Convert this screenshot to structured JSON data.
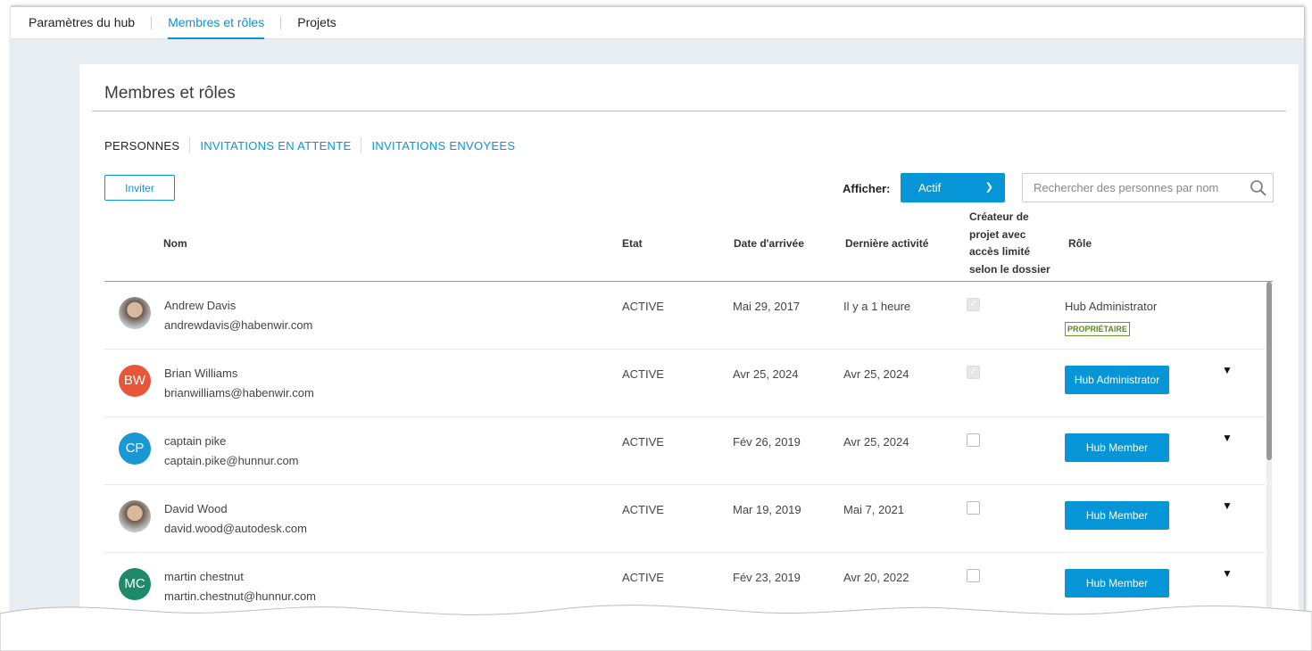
{
  "top_nav": {
    "tabs": [
      {
        "label": "Paramètres du hub"
      },
      {
        "label": "Membres et rôles",
        "active": true
      },
      {
        "label": "Projets"
      }
    ]
  },
  "page_title": "Membres et rôles",
  "sub_tabs": [
    {
      "label": "PERSONNES",
      "active": true
    },
    {
      "label": "INVITATIONS EN ATTENTE"
    },
    {
      "label": "INVITATIONS ENVOYEES"
    }
  ],
  "invite_label": "Inviter",
  "filter": {
    "label": "Afficher:",
    "value": "Actif"
  },
  "search": {
    "placeholder": "Rechercher des personnes par nom"
  },
  "columns": {
    "name": "Nom",
    "status": "Etat",
    "joined": "Date d'arrivée",
    "last": "Dernière activité",
    "creator": "Créateur de projet avec accès limité selon le dossier",
    "role": "Rôle"
  },
  "colors": {
    "accent": "#0696d7",
    "owner_badge": "#5a8a1a"
  },
  "rows": [
    {
      "initials": "",
      "avatar": "photo",
      "name": "Andrew Davis",
      "email": "andrewdavis@habenwir.com",
      "status": "ACTIVE",
      "joined": "Mai 29, 2017",
      "last": "Il y a 1 heure",
      "creator": true,
      "role": "Hub Administrator",
      "badge": "PROPRIÉTAIRE"
    },
    {
      "initials": "BW",
      "color": "#e8563a",
      "name": "Brian Williams",
      "email": "brianwilliams@habenwir.com",
      "status": "ACTIVE",
      "joined": "Avr 25, 2024",
      "last": "Avr 25, 2024",
      "creator": true,
      "role": "Hub Administrator"
    },
    {
      "initials": "CP",
      "color": "#1a98d5",
      "name": "captain pike",
      "email": "captain.pike@hunnur.com",
      "status": "ACTIVE",
      "joined": "Fév 26, 2019",
      "last": "Avr 25, 2024",
      "creator": false,
      "role": "Hub Member"
    },
    {
      "initials": "",
      "avatar": "photo",
      "name": "David Wood",
      "email": "david.wood@autodesk.com",
      "status": "ACTIVE",
      "joined": "Mar 19, 2019",
      "last": "Mai 7, 2021",
      "creator": false,
      "role": "Hub Member"
    },
    {
      "initials": "MC",
      "color": "#1e8a6a",
      "name": "martin chestnut",
      "email": "martin.chestnut@hunnur.com",
      "status": "ACTIVE",
      "joined": "Fév 23, 2019",
      "last": "Avr 20, 2022",
      "creator": false,
      "role": "Hub Member"
    }
  ]
}
